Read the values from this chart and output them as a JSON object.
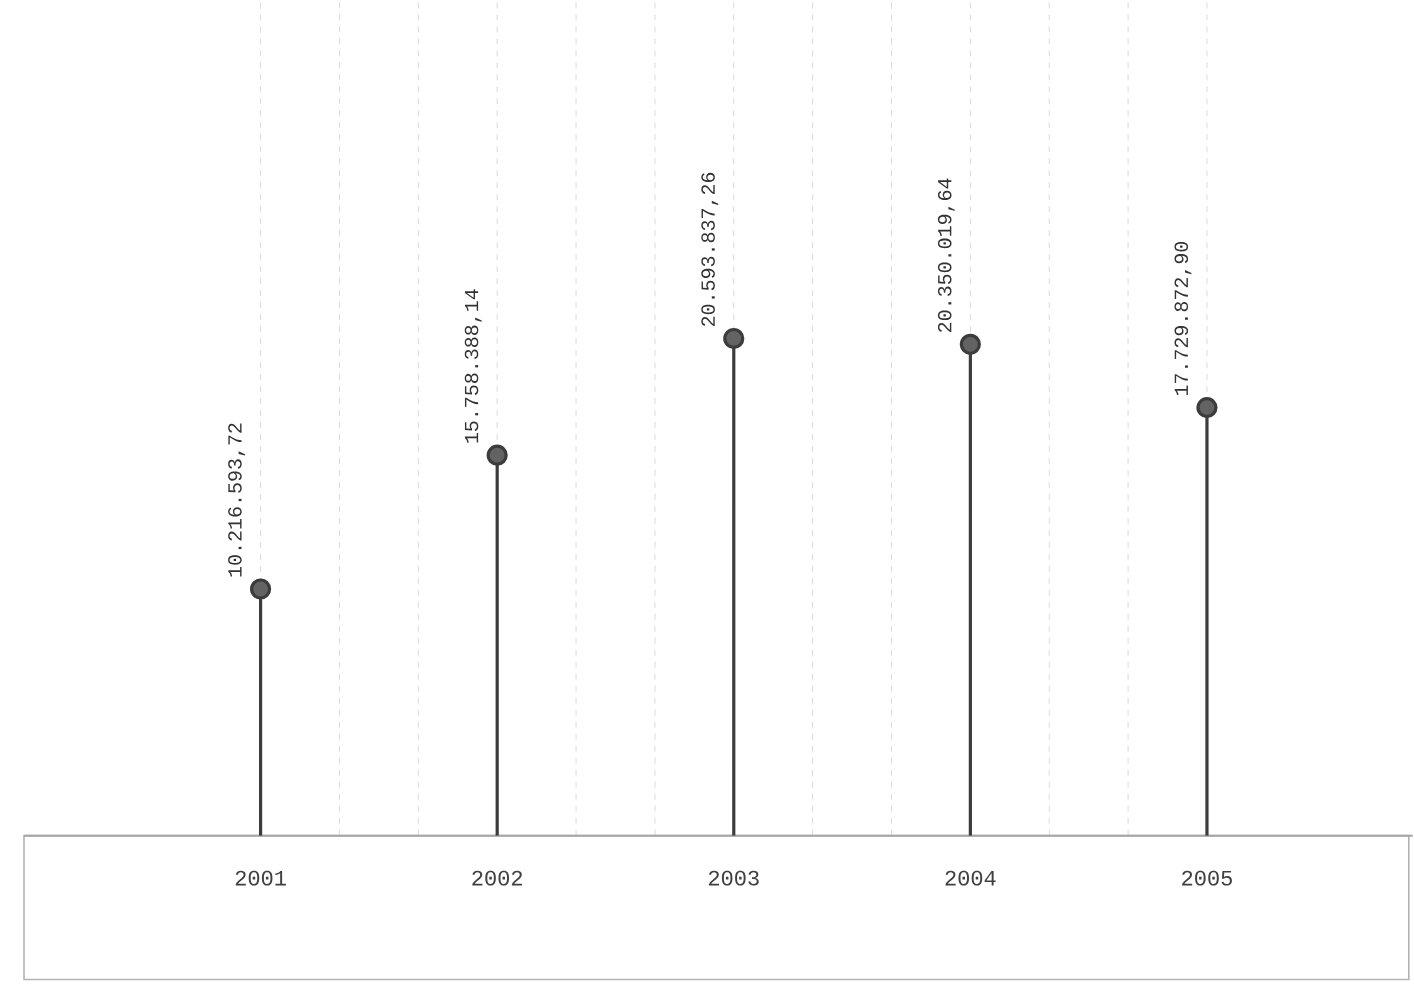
{
  "chart_data": {
    "type": "lollipop",
    "categories": [
      "2001",
      "2002",
      "2003",
      "2004",
      "2005"
    ],
    "values": [
      10216593.72,
      15758388.14,
      20593837.26,
      20350019.64,
      17729872.9
    ],
    "value_labels": [
      "10.216.593,72",
      "15.758.388,14",
      "20.593.837,26",
      "20.350.019,64",
      "17.729.872,90"
    ],
    "color": "#3c3c3c",
    "marker": "circle",
    "grid": true,
    "tick_labels": "x"
  }
}
